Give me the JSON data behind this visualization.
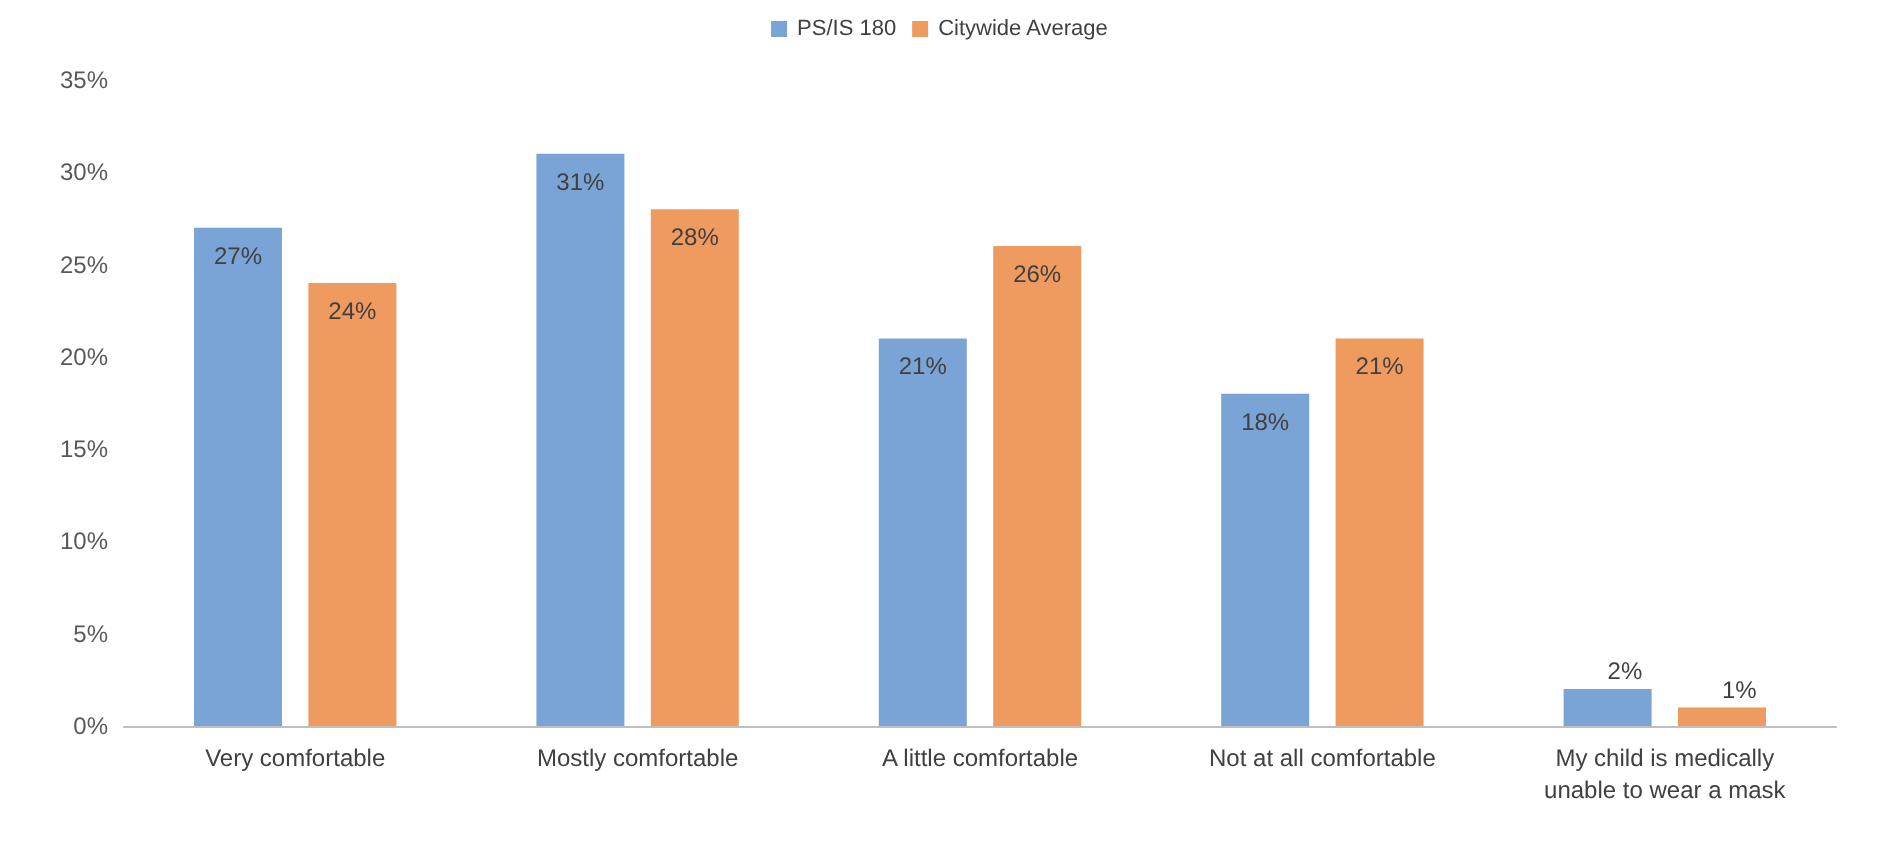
{
  "chart_data": {
    "type": "bar",
    "categories": [
      "Very comfortable",
      "Mostly comfortable",
      "A little comfortable",
      "Not at all comfortable",
      "My child is medically\nunable to wear a mask"
    ],
    "series": [
      {
        "name": "PS/IS 180",
        "color": "#7aa3d6",
        "values": [
          27,
          31,
          21,
          18,
          2
        ],
        "value_labels": [
          "27%",
          "31%",
          "21%",
          "18%",
          "2%"
        ]
      },
      {
        "name": "Citywide Average",
        "color": "#ef9a5f",
        "values": [
          24,
          28,
          26,
          21,
          1
        ],
        "value_labels": [
          "24%",
          "28%",
          "26%",
          "21%",
          "1%"
        ]
      }
    ],
    "ylim": [
      0,
      35
    ],
    "yticks": [
      {
        "value": 0,
        "label": "0%"
      },
      {
        "value": 5,
        "label": "5%"
      },
      {
        "value": 10,
        "label": "10%"
      },
      {
        "value": 15,
        "label": "15%"
      },
      {
        "value": 20,
        "label": "20%"
      },
      {
        "value": 25,
        "label": "25%"
      },
      {
        "value": 30,
        "label": "30%"
      },
      {
        "value": 35,
        "label": "35%"
      }
    ],
    "grid": false,
    "legend": "top"
  }
}
